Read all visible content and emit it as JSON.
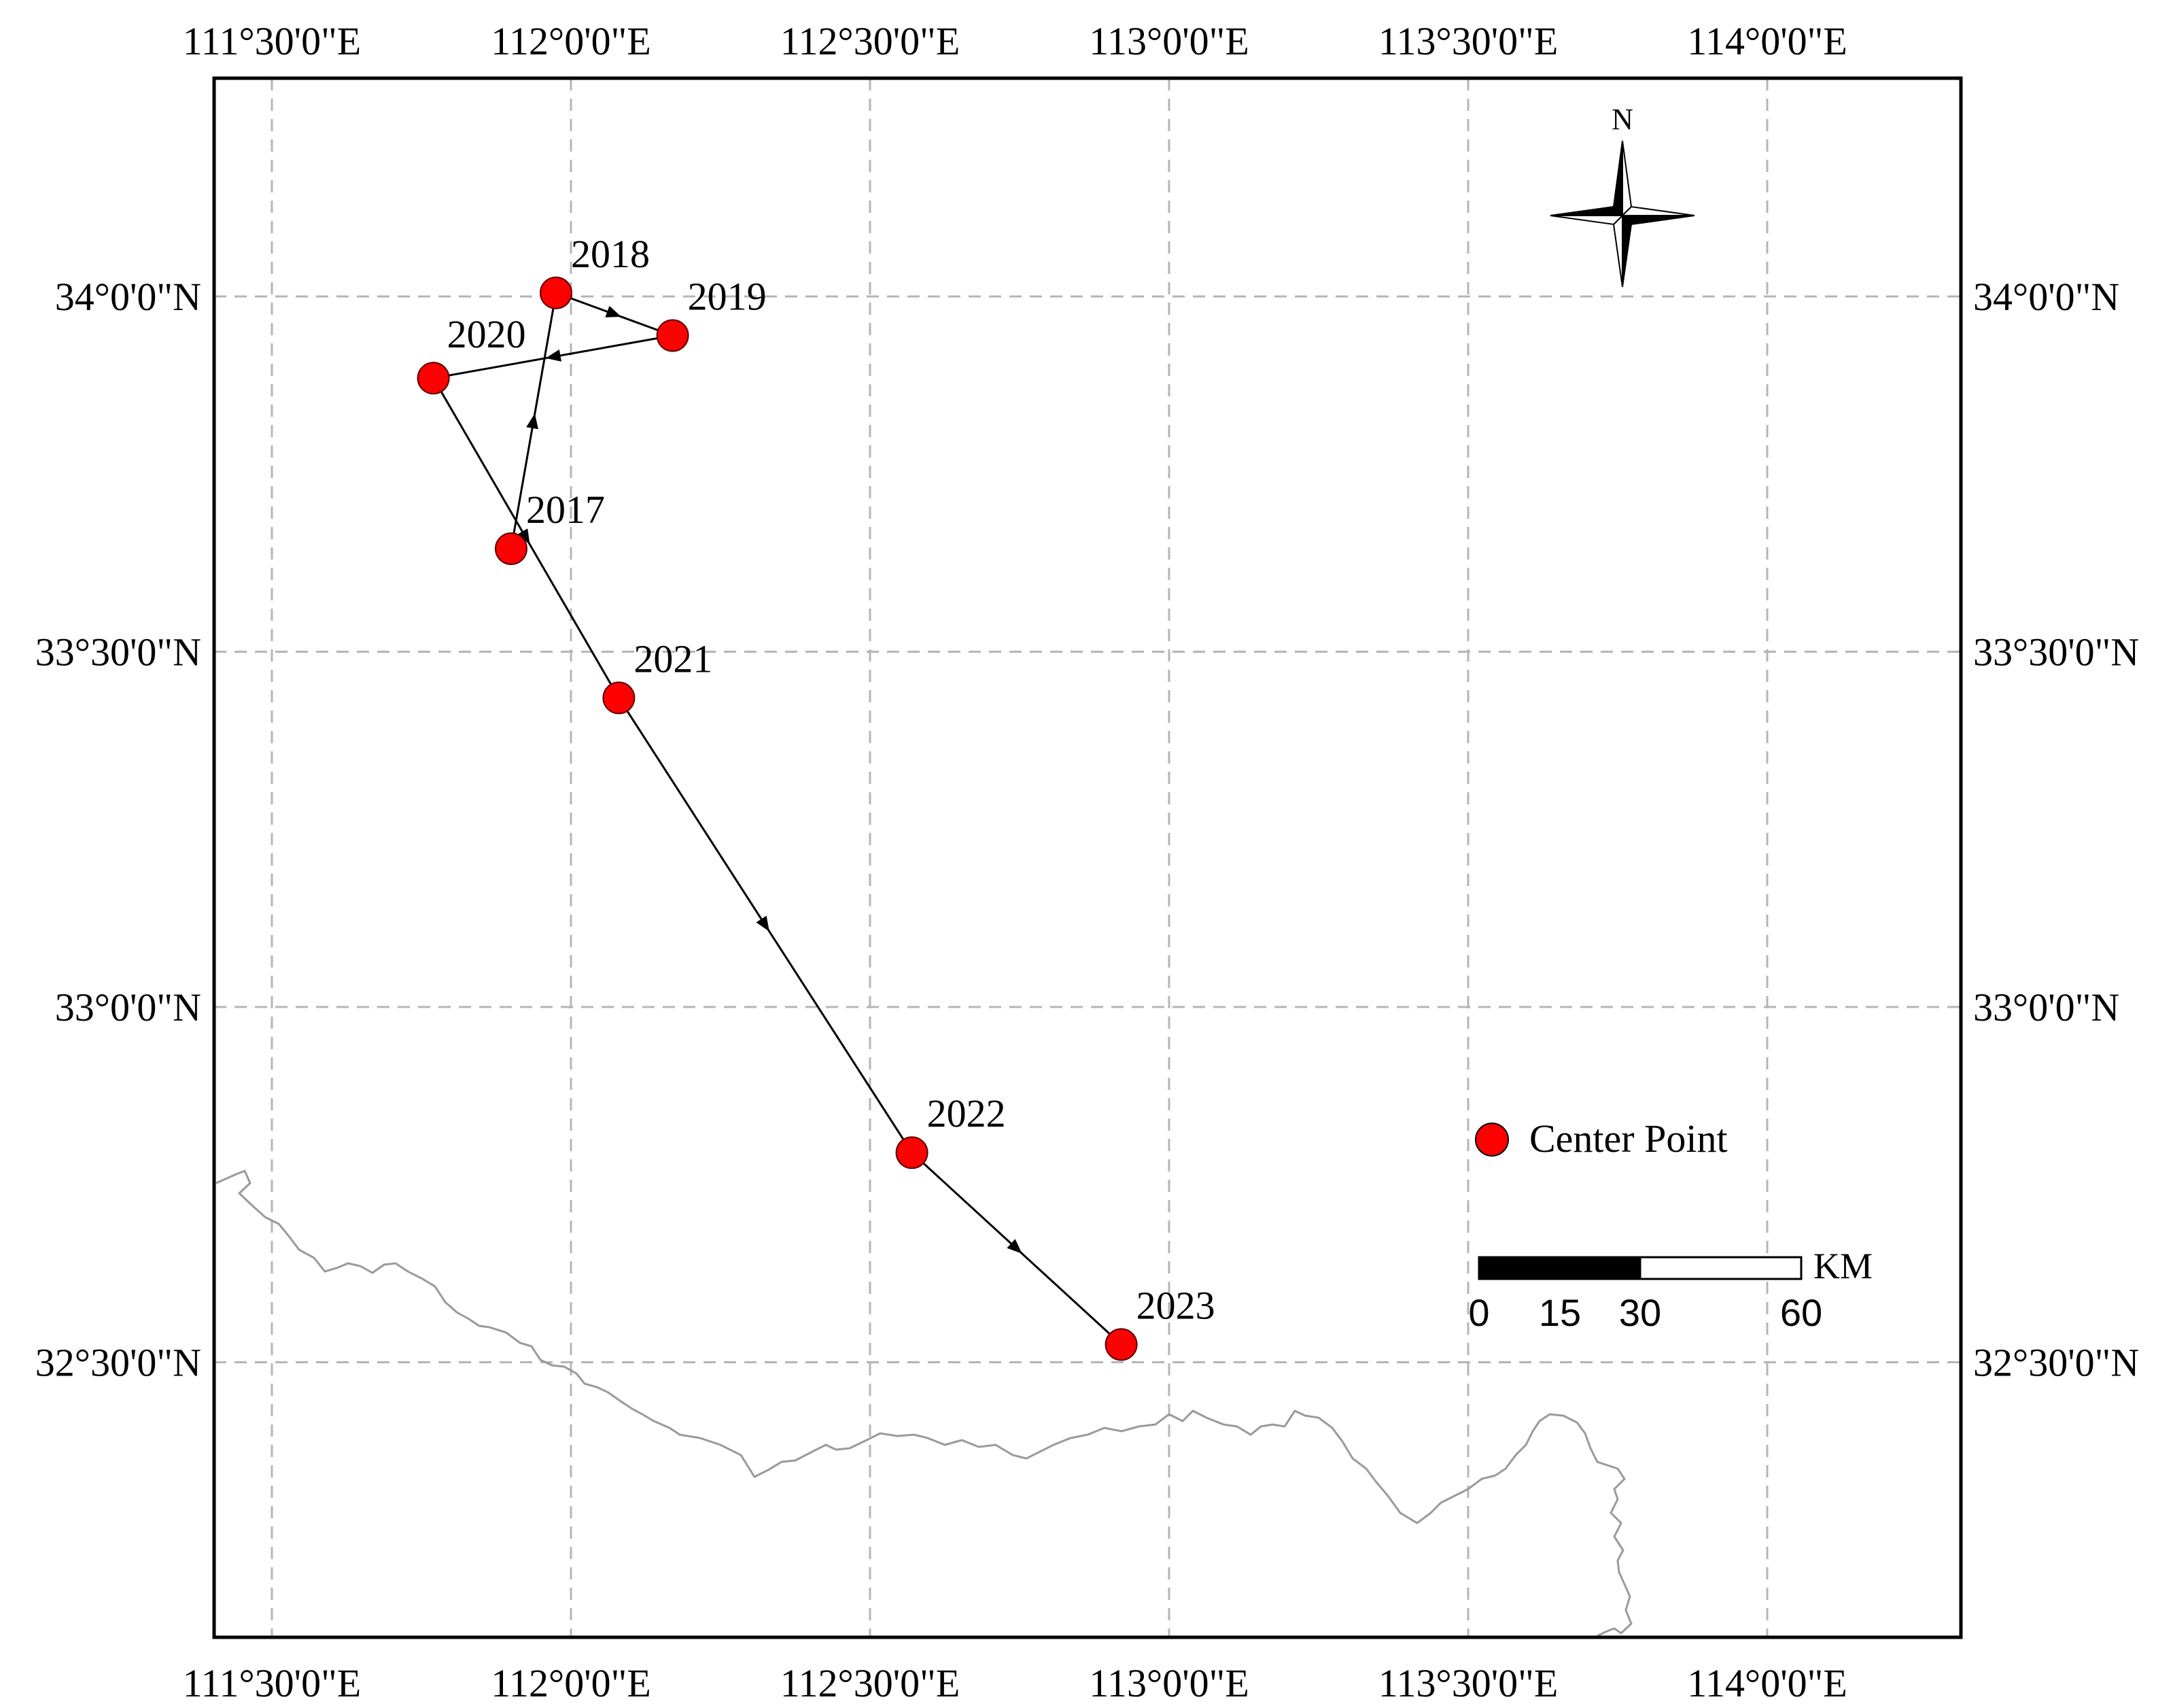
{
  "map": {
    "x_ticks": [
      {
        "value": 111.5,
        "label": "111°30'0\"E"
      },
      {
        "value": 112.0,
        "label": "112°0'0\"E"
      },
      {
        "value": 112.5,
        "label": "112°30'0\"E"
      },
      {
        "value": 113.0,
        "label": "113°0'0\"E"
      },
      {
        "value": 113.5,
        "label": "113°30'0\"E"
      },
      {
        "value": 114.0,
        "label": "114°0'0\"E"
      }
    ],
    "y_ticks": [
      {
        "value": 34.0,
        "label": "34°0'0\"N"
      },
      {
        "value": 33.5,
        "label": "33°30'0\"N"
      },
      {
        "value": 33.0,
        "label": "33°0'0\"N"
      },
      {
        "value": 32.5,
        "label": "32°30'0\"N"
      }
    ],
    "center_points": [
      {
        "year": "2017",
        "lon": 111.9,
        "lat": 33.645
      },
      {
        "year": "2018",
        "lon": 111.975,
        "lat": 34.005
      },
      {
        "year": "2019",
        "lon": 112.17,
        "lat": 33.945
      },
      {
        "year": "2020",
        "lon": 111.77,
        "lat": 33.885
      },
      {
        "year": "2021",
        "lon": 112.08,
        "lat": 33.435
      },
      {
        "year": "2022",
        "lon": 112.57,
        "lat": 32.795
      },
      {
        "year": "2023",
        "lon": 112.92,
        "lat": 32.525
      }
    ],
    "north_label": "N",
    "legend_label": "Center Point",
    "point_color": "#ff0000",
    "scale": {
      "ticks": [
        "0",
        "15",
        "30",
        "60"
      ],
      "unit": "KM"
    }
  }
}
